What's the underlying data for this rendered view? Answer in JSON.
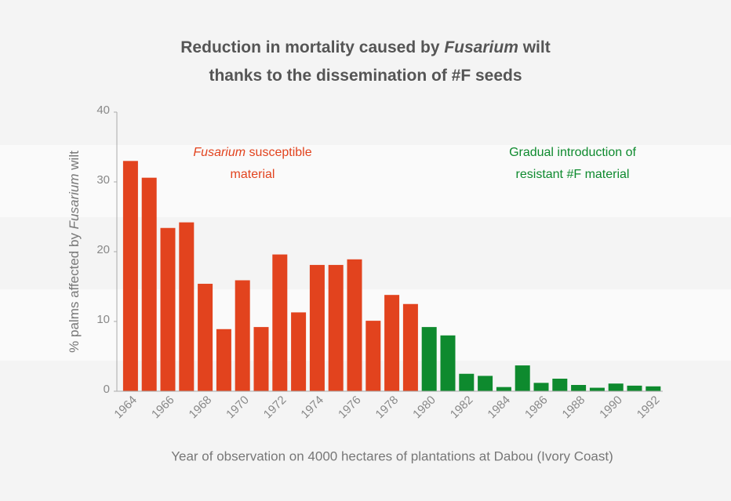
{
  "chart_data": {
    "type": "bar",
    "title": [
      [
        {
          "text": "Reduction in mortality caused by"
        },
        {
          "text": "Fusarium",
          "italic": true
        },
        {
          "text": "wilt"
        }
      ],
      [
        {
          "text": "thanks to the dissemination of #F seeds"
        }
      ]
    ],
    "y_label": [
      {
        "text": "% palms affected by"
      },
      {
        "text": "Fusarium",
        "italic": true
      },
      {
        "text": "wilt"
      }
    ],
    "x_label": "Year of observation on 4000 hectares of plantations at Dabou (Ivory Coast)",
    "annotations": [
      {
        "color": "#e2431e",
        "lines": [
          [
            {
              "text": "Fusarium",
              "italic": true
            },
            {
              "text": "susceptible"
            }
          ],
          [
            {
              "text": "material"
            }
          ]
        ]
      },
      {
        "color": "#0e8a2e",
        "lines": [
          [
            {
              "text": "Gradual introduction of"
            }
          ],
          [
            {
              "text": "resistant #F material"
            }
          ]
        ]
      }
    ],
    "categories": [
      "1964",
      null,
      "1966",
      null,
      "1968",
      null,
      "1970",
      null,
      "1972",
      null,
      "1974",
      null,
      "1976",
      null,
      "1978",
      null,
      "1980",
      null,
      "1982",
      null,
      "1984",
      null,
      "1986",
      null,
      "1988",
      null,
      "1990",
      null,
      "1992"
    ],
    "values": [
      33.0,
      30.6,
      23.4,
      24.2,
      15.4,
      8.9,
      15.9,
      9.2,
      19.6,
      11.3,
      18.1,
      18.1,
      18.9,
      10.1,
      13.8,
      12.5,
      9.2,
      8.0,
      2.5,
      2.2,
      0.6,
      3.7,
      1.2,
      1.8,
      0.9,
      0.5,
      1.1,
      0.8,
      0.7
    ],
    "colors": [
      "#e2431e",
      "#e2431e",
      "#e2431e",
      "#e2431e",
      "#e2431e",
      "#e2431e",
      "#e2431e",
      "#e2431e",
      "#e2431e",
      "#e2431e",
      "#e2431e",
      "#e2431e",
      "#e2431e",
      "#e2431e",
      "#e2431e",
      "#e2431e",
      "#0e8a2e",
      "#0e8a2e",
      "#0e8a2e",
      "#0e8a2e",
      "#0e8a2e",
      "#0e8a2e",
      "#0e8a2e",
      "#0e8a2e",
      "#0e8a2e",
      "#0e8a2e",
      "#0e8a2e",
      "#0e8a2e",
      "#0e8a2e"
    ],
    "ylim": [
      0,
      40
    ],
    "yticks": [
      0,
      10,
      20,
      30,
      40
    ]
  }
}
